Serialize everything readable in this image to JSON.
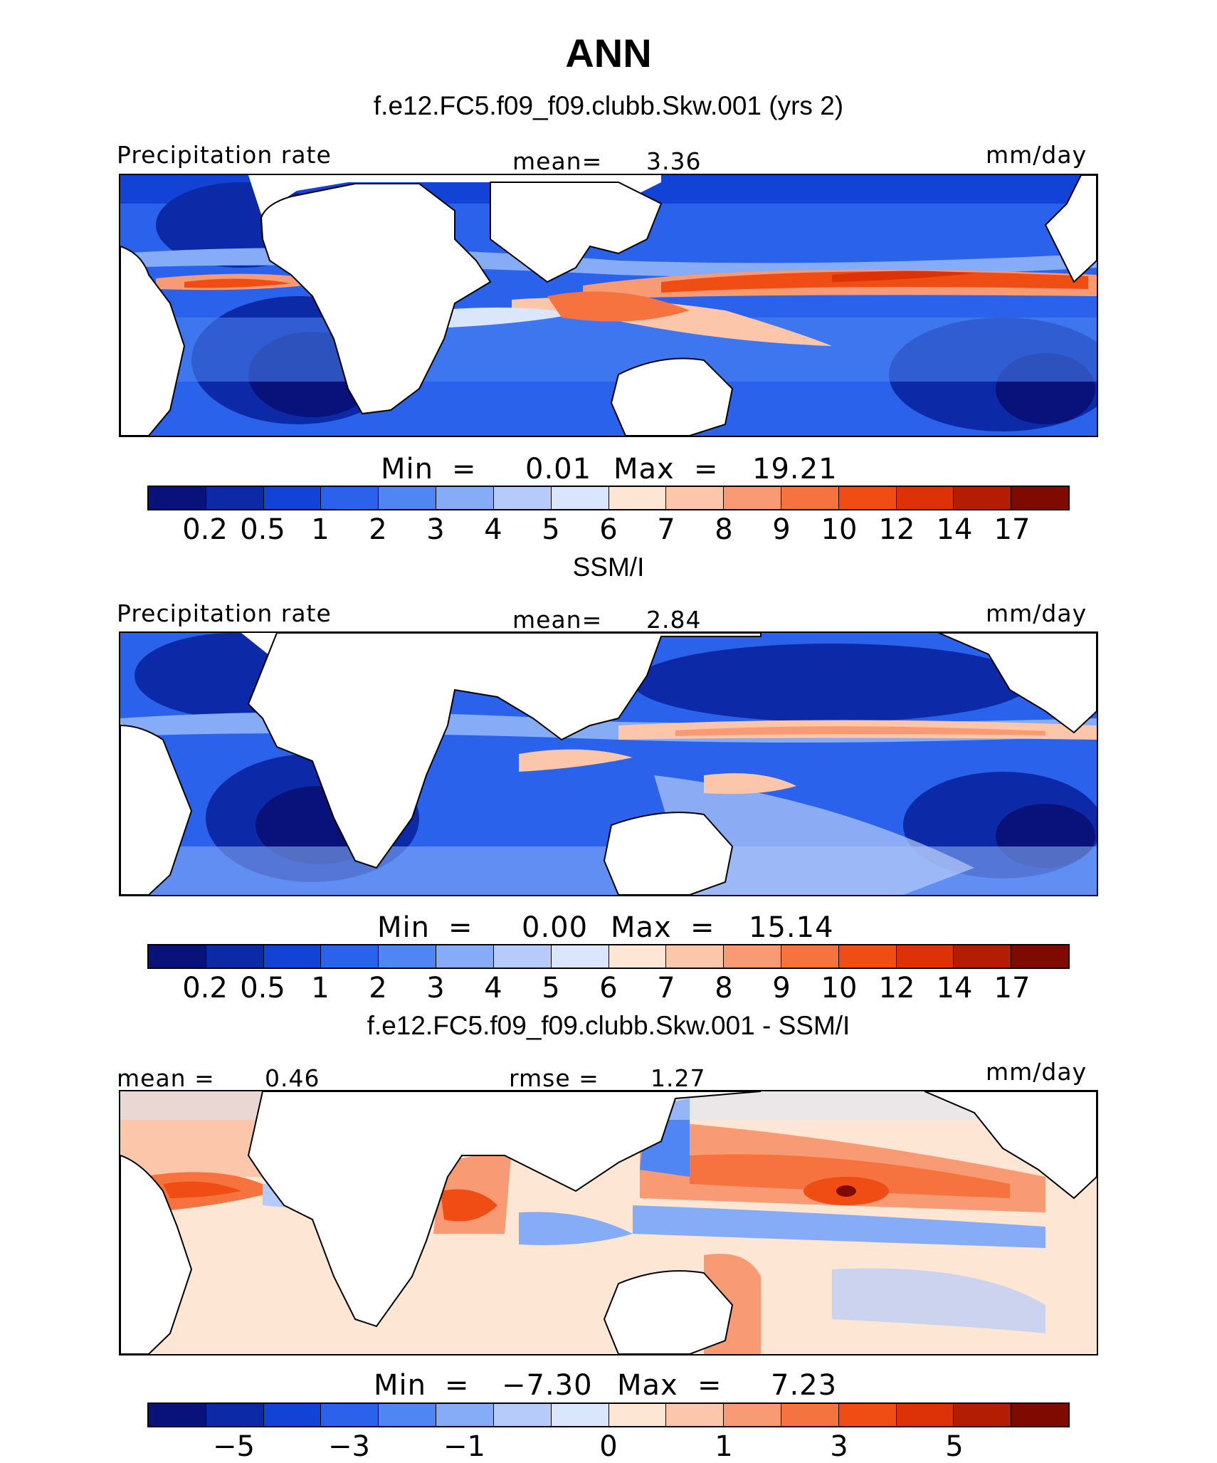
{
  "header": {
    "title": "ANN",
    "subtitle": "f.e12.FC5.f09_f09.clubb.Skw.001 (yrs 2)"
  },
  "palette": {
    "precip": [
      "#08127a",
      "#0c2aa8",
      "#1242d6",
      "#2a62ec",
      "#4f86f4",
      "#86abf7",
      "#b6cbf9",
      "#d9e6fb",
      "#fde7d4",
      "#fbc6aa",
      "#f89a74",
      "#f6733f",
      "#ef4d14",
      "#dd3108",
      "#b31e02",
      "#7e0a00"
    ],
    "diff": [
      "#08127a",
      "#0c2aa8",
      "#1242d6",
      "#2a62ec",
      "#4f86f4",
      "#86abf7",
      "#b6cbf9",
      "#d9e6fb",
      "#fde7d4",
      "#fbc6aa",
      "#f89a74",
      "#f6733f",
      "#ef4d14",
      "#dd3108",
      "#b31e02",
      "#7e0a00"
    ]
  },
  "panels": [
    {
      "id": "model",
      "title": "",
      "left_label": "Precipitation rate",
      "center_label": "mean=",
      "center_value": "3.36",
      "right_label": "mm/day",
      "min_label": "Min",
      "min_value": "0.01",
      "max_label": "Max",
      "max_value": "19.21",
      "ticks": [
        "0.2",
        "0.5",
        "1",
        "2",
        "3",
        "4",
        "5",
        "6",
        "7",
        "8",
        "9",
        "10",
        "12",
        "14",
        "17"
      ]
    },
    {
      "id": "obs",
      "title": "SSM/I",
      "left_label": "Precipitation rate",
      "center_label": "mean=",
      "center_value": "2.84",
      "right_label": "mm/day",
      "min_label": "Min",
      "min_value": "0.00",
      "max_label": "Max",
      "max_value": "15.14",
      "ticks": [
        "0.2",
        "0.5",
        "1",
        "2",
        "3",
        "4",
        "5",
        "6",
        "7",
        "8",
        "9",
        "10",
        "12",
        "14",
        "17"
      ]
    },
    {
      "id": "diff",
      "title": "f.e12.FC5.f09_f09.clubb.Skw.001 - SSM/I",
      "left_label": "mean =",
      "left_value": "0.46",
      "center_label": "rmse =",
      "center_value": "1.27",
      "right_label": "mm/day",
      "min_label": "Min",
      "min_value": "−7.30",
      "max_label": "Max",
      "max_value": "7.23",
      "ticks": [
        "−5",
        "−3",
        "−1",
        "0",
        "1",
        "3",
        "5"
      ]
    }
  ]
}
